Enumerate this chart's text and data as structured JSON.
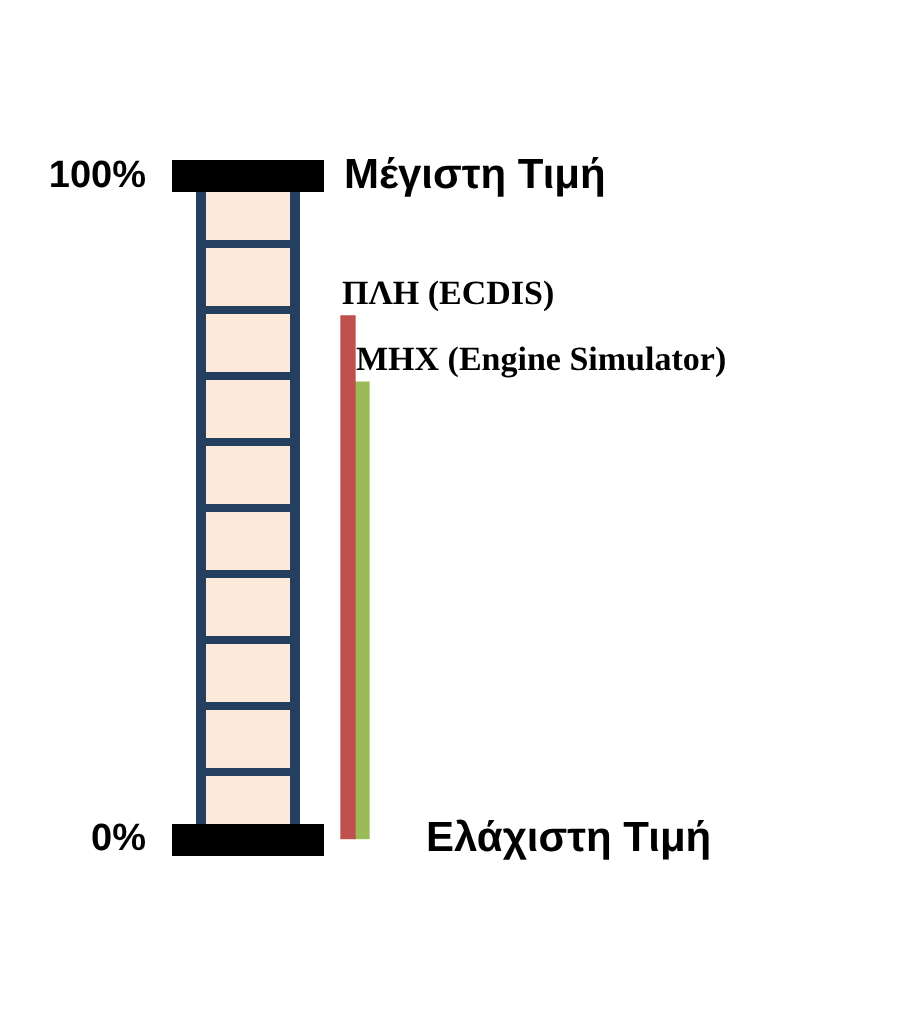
{
  "chart_data": {
    "type": "bar",
    "categories": [
      null
    ],
    "series": [
      {
        "name": "ΠΛΗ (ECDIS)",
        "color": "#c0504d",
        "values": [
          79
        ]
      },
      {
        "name": "ΜΗΧ (Engine Simulator)",
        "color": "#9bbb59",
        "values": [
          69
        ]
      }
    ],
    "ylim": [
      0,
      100
    ],
    "yticks": [
      {
        "value": 0,
        "label": "0%"
      },
      {
        "value": 100,
        "label": "100%"
      }
    ],
    "annotations": [
      "Μέγιστη Τιμή",
      "Ελάχιστη Τιμή"
    ],
    "legend": false,
    "tick_labels": "y"
  }
}
